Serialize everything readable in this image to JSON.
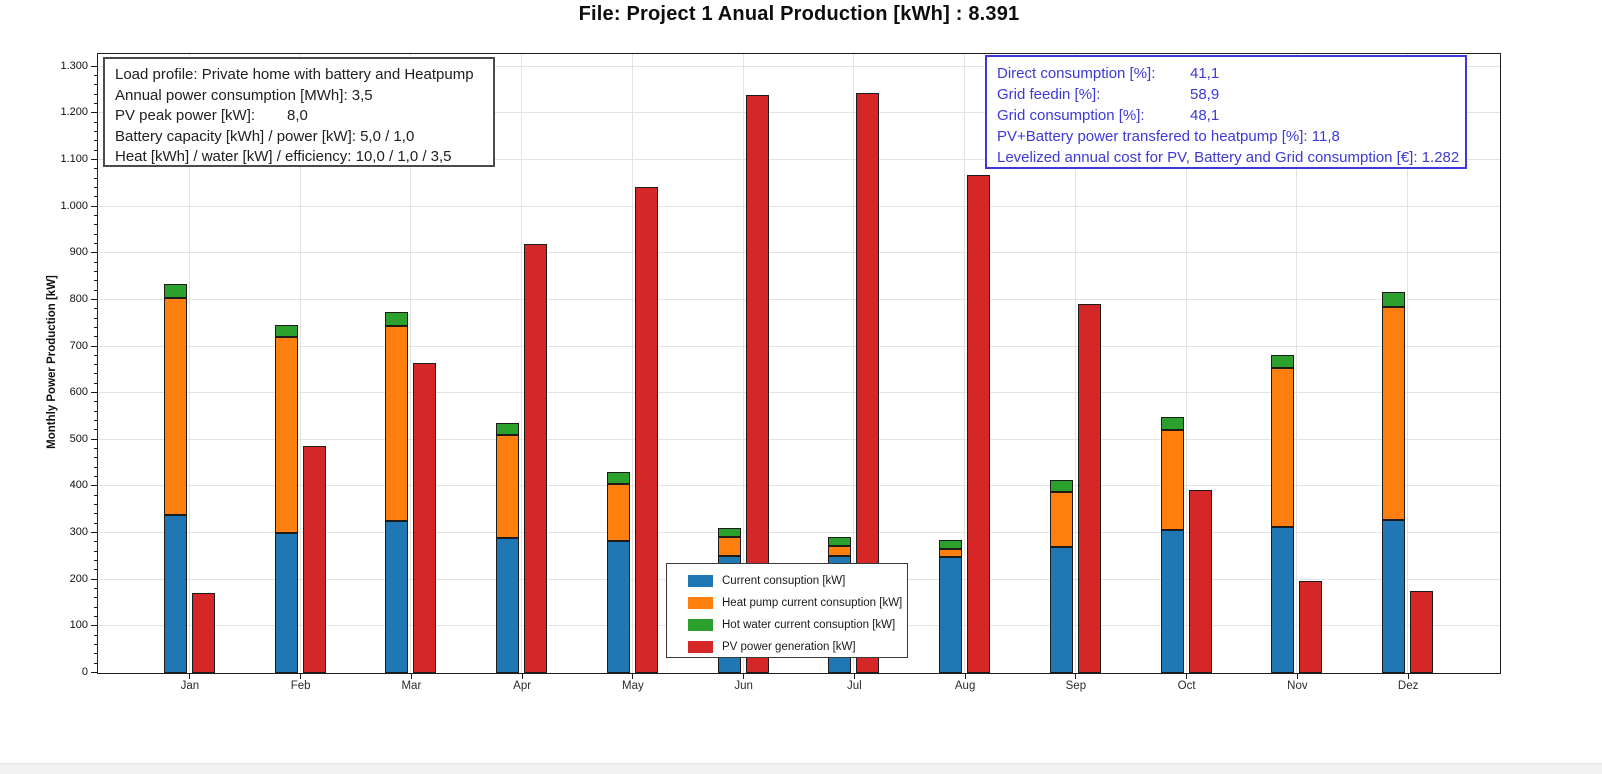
{
  "window": {
    "title_line": "File: Project 1  Anual Production [kWh] :  8.391"
  },
  "info_box": {
    "lines": [
      {
        "label": "Load profile: Private home with battery and Heatpump",
        "value": "",
        "col": 0
      },
      {
        "label": "Annual power consumption [MWh]: ",
        "value": "3,5",
        "col": 0
      },
      {
        "label": "PV peak power [kW]:",
        "value": "8,0",
        "col": 172
      },
      {
        "label": "Battery capacity [kWh] / power [kW]: ",
        "value": "5,0 / 1,0",
        "col": 0
      },
      {
        "label": "Heat [kWh] / water [kW] / efficiency: ",
        "value": "10,0 / 1,0 / 3,5",
        "col": 0
      }
    ]
  },
  "results_box": {
    "lines": [
      {
        "label": "Direct consumption [%]:",
        "value": "41,1",
        "col": 193
      },
      {
        "label": "Grid feedin [%]:",
        "value": "58,9",
        "col": 193
      },
      {
        "label": "Grid consumption [%]:",
        "value": "48,1",
        "col": 193
      },
      {
        "label": "PV+Battery power transfered to heatpump [%]: ",
        "value": "11,8",
        "col": 0
      },
      {
        "label": "Levelized annual cost for PV, Battery and Grid consumption [€]: ",
        "value": "1.282",
        "col": 0
      }
    ]
  },
  "chart_data": {
    "type": "bar",
    "title": "File: Project 1  Anual Production [kWh] :  8.391",
    "xlabel": "",
    "ylabel": "Monthly Power Production [kW]",
    "categories": [
      "Jan",
      "Feb",
      "Mar",
      "Apr",
      "May",
      "Jun",
      "Jul",
      "Aug",
      "Sep",
      "Oct",
      "Nov",
      "Dez"
    ],
    "stacked_series": [
      {
        "name": "Current consuption [kW]",
        "color": "#1f77b4",
        "values": [
          339,
          300,
          325,
          289,
          282,
          250,
          250,
          249,
          270,
          307,
          314,
          329
        ]
      },
      {
        "name": "Heat pump current consuption [kW]",
        "color": "#ff7f0e",
        "values": [
          464,
          421,
          418,
          221,
          123,
          41,
          22,
          16,
          119,
          215,
          341,
          456
        ]
      },
      {
        "name": "Hot water current consuption [kW]",
        "color": "#2ca02c",
        "values": [
          31,
          26,
          30,
          25,
          26,
          19,
          19,
          21,
          25,
          27,
          27,
          31
        ]
      }
    ],
    "bar_series": [
      {
        "name": "PV power generation [kW]",
        "color": "#d62728",
        "values": [
          171,
          486,
          664,
          920,
          1042,
          1240,
          1243,
          1068,
          792,
          393,
          197,
          175
        ]
      }
    ],
    "ylim": [
      0,
      1325
    ],
    "ytick_interval": 100,
    "ytick_label_max": 1300,
    "minor_tick_interval": 20,
    "grid": true,
    "legend_position": "bottom-center-overlay"
  },
  "colors": {
    "results_accent": "#3c39d8",
    "axis": "#1a1a1a",
    "gridline": "#e3e3e3"
  }
}
